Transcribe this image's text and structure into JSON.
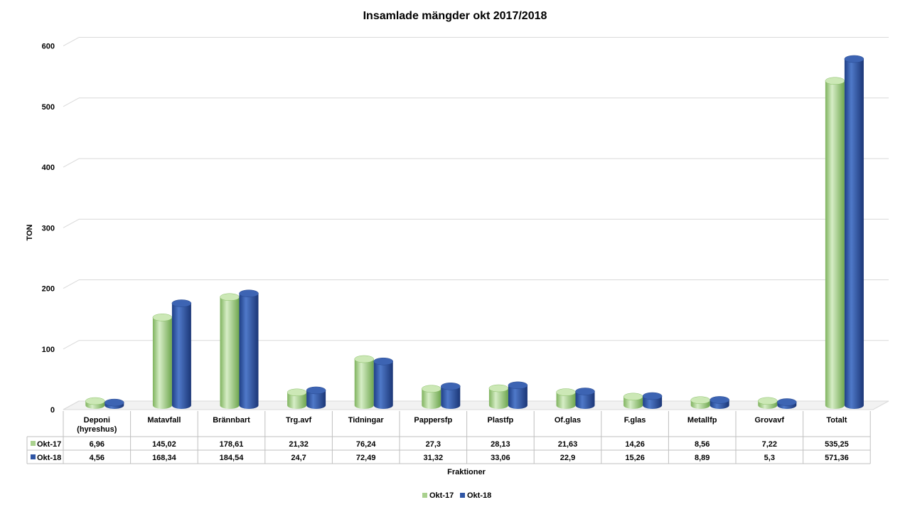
{
  "chart_data": {
    "type": "bar",
    "title": "Insamlade mängder okt 2017/2018",
    "xlabel": "Fraktioner",
    "ylabel": "TON",
    "ylim": [
      0,
      600
    ],
    "yticks": [
      0,
      100,
      200,
      300,
      400,
      500,
      600
    ],
    "grid": true,
    "legend_position": "bottom",
    "data_table": true,
    "categories": [
      "Deponi (hyreshus)",
      "Matavfall",
      "Brännbart",
      "Trg.avf",
      "Tidningar",
      "Pappersfp",
      "Plastfp",
      "Of.glas",
      "F.glas",
      "Metallfp",
      "Grovavf",
      "Totalt"
    ],
    "category_lines": [
      [
        "Deponi",
        "(hyreshus)"
      ],
      [
        "Matavfall"
      ],
      [
        "Brännbart"
      ],
      [
        "Trg.avf"
      ],
      [
        "Tidningar"
      ],
      [
        "Pappersfp"
      ],
      [
        "Plastfp"
      ],
      [
        "Of.glas"
      ],
      [
        "F.glas"
      ],
      [
        "Metallfp"
      ],
      [
        "Grovavf"
      ],
      [
        "Totalt"
      ]
    ],
    "series": [
      {
        "name": "Okt-17",
        "color": "#a9d18e",
        "values": [
          6.96,
          145.02,
          178.61,
          21.32,
          76.24,
          27.3,
          28.13,
          21.63,
          14.26,
          8.56,
          7.22,
          535.25
        ],
        "labels": [
          "6,96",
          "145,02",
          "178,61",
          "21,32",
          "76,24",
          "27,3",
          "28,13",
          "21,63",
          "14,26",
          "8,56",
          "7,22",
          "535,25"
        ]
      },
      {
        "name": "Okt-18",
        "color": "#2f55a4",
        "values": [
          4.56,
          168.34,
          184.54,
          24.7,
          72.49,
          31.32,
          33.06,
          22.9,
          15.26,
          8.89,
          5.3,
          571.36
        ],
        "labels": [
          "4,56",
          "168,34",
          "184,54",
          "24,7",
          "72,49",
          "31,32",
          "33,06",
          "22,9",
          "15,26",
          "8,89",
          "5,3",
          "571,36"
        ]
      }
    ]
  }
}
